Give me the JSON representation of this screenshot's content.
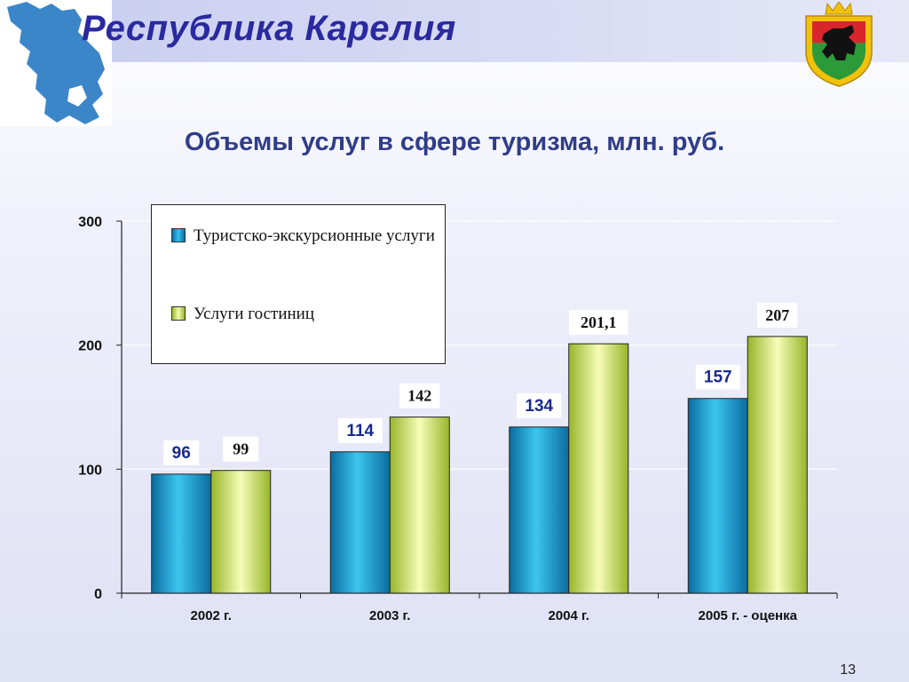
{
  "header": {
    "title": "Республика Карелия"
  },
  "slide": {
    "page_number": "13"
  },
  "icons": {
    "map": "karelia-map-icon",
    "emblem": "karelia-coat-of-arms-icon"
  },
  "colors": {
    "series1": "#1ba3d6",
    "series2": "#d4ec6a",
    "title": "#2a2aa0",
    "label1": "#1a2a8a"
  },
  "chart_data": {
    "type": "bar",
    "title": "Объемы услуг в сфере туризма, млн. руб.",
    "categories": [
      "2002 г.",
      "2003 г.",
      "2004 г.",
      "2005 г.  - оценка"
    ],
    "series": [
      {
        "name": "Туристско-экскурсионные услуги",
        "values": [
          96,
          114,
          134,
          157
        ],
        "value_labels": [
          "96",
          "114",
          "134",
          "157"
        ]
      },
      {
        "name": "Услуги гостиниц",
        "values": [
          99,
          142,
          201.1,
          207
        ],
        "value_labels": [
          "99",
          "142",
          "201,1",
          "207"
        ]
      }
    ],
    "yticks": [
      "0",
      "100",
      "200",
      "300"
    ],
    "ylim": [
      0,
      300
    ],
    "grid": true,
    "legend": "top-left"
  }
}
